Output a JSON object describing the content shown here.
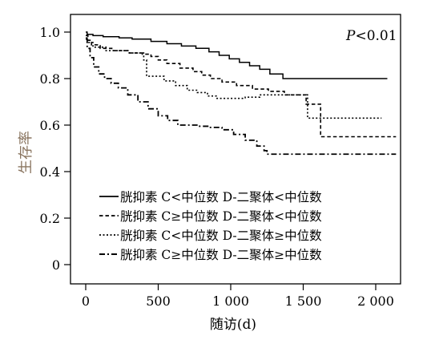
{
  "chart_data": {
    "type": "line",
    "subtype": "kaplan-meier",
    "title": "",
    "xlabel": "随访(d)",
    "ylabel": "生存率",
    "annotation": {
      "italic": "P",
      "rest": "<0.01"
    },
    "xlim": [
      0,
      2150
    ],
    "ylim": [
      0,
      1.05
    ],
    "xticks": [
      0,
      500,
      1000,
      1500,
      2000
    ],
    "xtick_labels": [
      "0",
      "500",
      "1 000",
      "1 500",
      "2 000"
    ],
    "yticks": [
      0,
      0.2,
      0.4,
      0.6,
      0.8,
      1.0
    ],
    "ytick_labels": [
      "0",
      "0.2",
      "0.4",
      "0.6",
      "0.8",
      "1.0"
    ],
    "grid": false,
    "legend_position": "lower-left",
    "series": [
      {
        "name": "胱抑素 C<中位数 D-二聚体<中位数",
        "line_style": "solid",
        "x": [
          0,
          10,
          50,
          120,
          230,
          320,
          450,
          560,
          660,
          760,
          850,
          920,
          990,
          1060,
          1130,
          1200,
          1270,
          1360,
          2080
        ],
        "y": [
          1.0,
          0.99,
          0.985,
          0.98,
          0.975,
          0.97,
          0.96,
          0.95,
          0.94,
          0.93,
          0.915,
          0.9,
          0.885,
          0.87,
          0.855,
          0.84,
          0.82,
          0.8,
          0.8
        ]
      },
      {
        "name": "胱抑素 C≥中位数 D-二聚体<中位数",
        "line_style": "dashed",
        "x": [
          0,
          15,
          40,
          100,
          180,
          300,
          390,
          450,
          500,
          560,
          650,
          740,
          800,
          860,
          940,
          1040,
          1150,
          1260,
          1370,
          1520,
          1620,
          2140
        ],
        "y": [
          0.985,
          0.965,
          0.945,
          0.93,
          0.92,
          0.91,
          0.905,
          0.895,
          0.88,
          0.865,
          0.845,
          0.83,
          0.815,
          0.8,
          0.785,
          0.77,
          0.755,
          0.745,
          0.73,
          0.69,
          0.55,
          0.55
        ]
      },
      {
        "name": "胱抑素 C<中位数 D-二聚体≥中位数",
        "line_style": "dotted",
        "x": [
          0,
          10,
          50,
          140,
          300,
          400,
          420,
          540,
          620,
          700,
          770,
          840,
          900,
          1000,
          1100,
          1200,
          1290,
          1500,
          1530,
          2040
        ],
        "y": [
          0.975,
          0.955,
          0.935,
          0.92,
          0.91,
          0.88,
          0.81,
          0.79,
          0.77,
          0.75,
          0.74,
          0.725,
          0.715,
          0.715,
          0.72,
          0.73,
          0.73,
          0.73,
          0.63,
          0.63
        ]
      },
      {
        "name": "胱抑素 C≥中位数 D-二聚体≥中位数",
        "line_style": "dashdot",
        "x": [
          0,
          10,
          30,
          55,
          90,
          130,
          175,
          225,
          290,
          360,
          430,
          500,
          565,
          635,
          700,
          780,
          860,
          940,
          1020,
          1100,
          1180,
          1230,
          1250,
          2140
        ],
        "y": [
          0.97,
          0.93,
          0.89,
          0.85,
          0.82,
          0.8,
          0.78,
          0.76,
          0.73,
          0.7,
          0.67,
          0.64,
          0.62,
          0.6,
          0.6,
          0.595,
          0.59,
          0.58,
          0.56,
          0.535,
          0.51,
          0.49,
          0.475,
          0.475
        ]
      }
    ]
  },
  "colors": {
    "axis": "#000000",
    "ylabel": "#8a7560",
    "series": "#000000"
  }
}
